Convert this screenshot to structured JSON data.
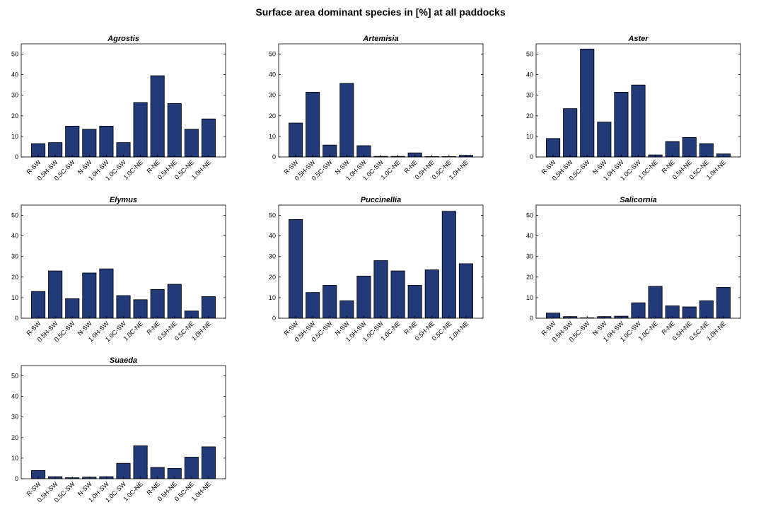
{
  "title": "Surface area dominant species in [%] at all paddocks",
  "colors": {
    "bar": "#233a78",
    "axis": "#000000"
  },
  "categories": [
    "R-SW",
    "0.5H-SW",
    "0.5C-SW",
    "N-SW",
    "1.0H-SW",
    "1.0C-SW",
    "1.0C-NE",
    "R-NE",
    "0.5H-NE",
    "0.5C-NE",
    "1.0H-NE"
  ],
  "chart_data": [
    {
      "type": "bar",
      "title": "Agrostis",
      "ylim": [
        0,
        55
      ],
      "yticks": [
        0,
        10,
        20,
        30,
        40,
        50
      ],
      "categories": [
        "R-SW",
        "0.5H-SW",
        "0.5C-SW",
        "N-SW",
        "1.0H-SW",
        "1.0C-SW",
        "1.0C-NE",
        "R-NE",
        "0.5H-NE",
        "0.5C-NE",
        "1.0H-NE"
      ],
      "values": [
        6.5,
        7,
        15,
        13.5,
        15,
        7,
        26.5,
        39.5,
        26,
        13.5,
        18.5
      ]
    },
    {
      "type": "bar",
      "title": "Artemisia",
      "ylim": [
        0,
        55
      ],
      "yticks": [
        0,
        10,
        20,
        30,
        40,
        50
      ],
      "categories": [
        "R-SW",
        "0.5H-SW",
        "0.5C-SW",
        "N-SW",
        "1.0H-SW",
        "1.0C-SW",
        "1.0C-NE",
        "R-NE",
        "0.5H-NE",
        "0.5C-NE",
        "1.0H-NE"
      ],
      "values": [
        16.5,
        31.5,
        5.8,
        35.8,
        5.5,
        0.3,
        0.3,
        2,
        0.2,
        0.2,
        0.8
      ]
    },
    {
      "type": "bar",
      "title": "Aster",
      "ylim": [
        0,
        55
      ],
      "yticks": [
        0,
        10,
        20,
        30,
        40,
        50
      ],
      "categories": [
        "R-SW",
        "0.5H-SW",
        "0.5C-SW",
        "N-SW",
        "1.0H-SW",
        "1.0C-SW",
        "1.0C-NE",
        "R-NE",
        "0.5H-NE",
        "0.5C-NE",
        "1.0H-NE"
      ],
      "values": [
        9,
        23.5,
        52.5,
        17,
        31.5,
        35,
        1,
        7.5,
        9.5,
        6.5,
        1.5
      ]
    },
    {
      "type": "bar",
      "title": "Elymus",
      "ylim": [
        0,
        55
      ],
      "yticks": [
        0,
        10,
        20,
        30,
        40,
        50
      ],
      "categories": [
        "R-SW",
        "0.5H-SW",
        "0.5C-SW",
        "N-SW",
        "1.0H-SW",
        "1.0C-SW",
        "1.0C-NE",
        "R-NE",
        "0.5H-NE",
        "0.5C-NE",
        "1.0H-NE"
      ],
      "values": [
        13,
        23,
        9.5,
        22,
        24,
        11,
        9,
        14,
        16.5,
        3.5,
        10.5
      ]
    },
    {
      "type": "bar",
      "title": "Puccinellia",
      "ylim": [
        0,
        55
      ],
      "yticks": [
        0,
        10,
        20,
        30,
        40,
        50
      ],
      "categories": [
        "R-SW",
        "0.5H-SW",
        "0.5C-SW",
        "N-SW",
        "1.0H-SW",
        "1.0C-SW",
        "1.0C-NE",
        "R-NE",
        "0.5H-NE",
        "0.5C-NE",
        "1.0H-NE"
      ],
      "values": [
        48,
        12.5,
        16,
        8.5,
        20.5,
        28,
        23,
        16,
        23.5,
        52,
        26.5
      ]
    },
    {
      "type": "bar",
      "title": "Salicornia",
      "ylim": [
        0,
        55
      ],
      "yticks": [
        0,
        10,
        20,
        30,
        40,
        50
      ],
      "categories": [
        "R-SW",
        "0.5H-SW",
        "0.5C-SW",
        "N-SW",
        "1.0H-SW",
        "1.0C-SW",
        "1.0C-NE",
        "R-NE",
        "0.5H-NE",
        "0.5C-NE",
        "1.0H-NE"
      ],
      "values": [
        2.5,
        0.8,
        0.2,
        0.8,
        1,
        7.5,
        15.5,
        6,
        5.5,
        8.5,
        15
      ]
    },
    {
      "type": "bar",
      "title": "Suaeda",
      "ylim": [
        0,
        55
      ],
      "yticks": [
        0,
        10,
        20,
        30,
        40,
        50
      ],
      "categories": [
        "R-SW",
        "0.5H-SW",
        "0.5C-SW",
        "N-SW",
        "1.0H-SW",
        "1.0C-SW",
        "1.0C-NE",
        "R-NE",
        "0.5H-NE",
        "0.5C-NE",
        "1.0H-NE"
      ],
      "values": [
        4,
        1,
        0.5,
        0.8,
        1,
        7.5,
        16,
        5.5,
        5,
        10.5,
        15.5
      ]
    }
  ]
}
